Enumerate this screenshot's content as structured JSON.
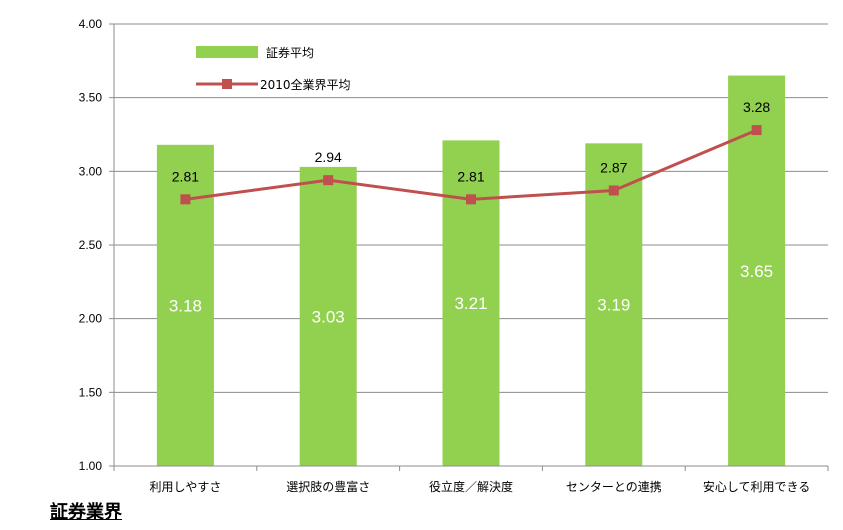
{
  "caption": "証券業界",
  "chart_data": {
    "type": "bar",
    "categories": [
      "利用しやすさ",
      "選択肢の豊富さ",
      "役立度／解決度",
      "センターとの連携",
      "安心して利用できる"
    ],
    "series": [
      {
        "name": "証券平均",
        "type": "bar",
        "color": "#92d050",
        "values": [
          3.18,
          3.03,
          3.21,
          3.19,
          3.65
        ]
      },
      {
        "name": "2010全業界平均",
        "type": "line",
        "color": "#c0504d",
        "values": [
          2.81,
          2.94,
          2.81,
          2.87,
          3.28
        ]
      }
    ],
    "ylim": [
      1.0,
      4.0
    ],
    "yticks": [
      "1.00",
      "1.50",
      "2.00",
      "2.50",
      "3.00",
      "3.50",
      "4.00"
    ],
    "grid": true,
    "legend": "top-left"
  }
}
